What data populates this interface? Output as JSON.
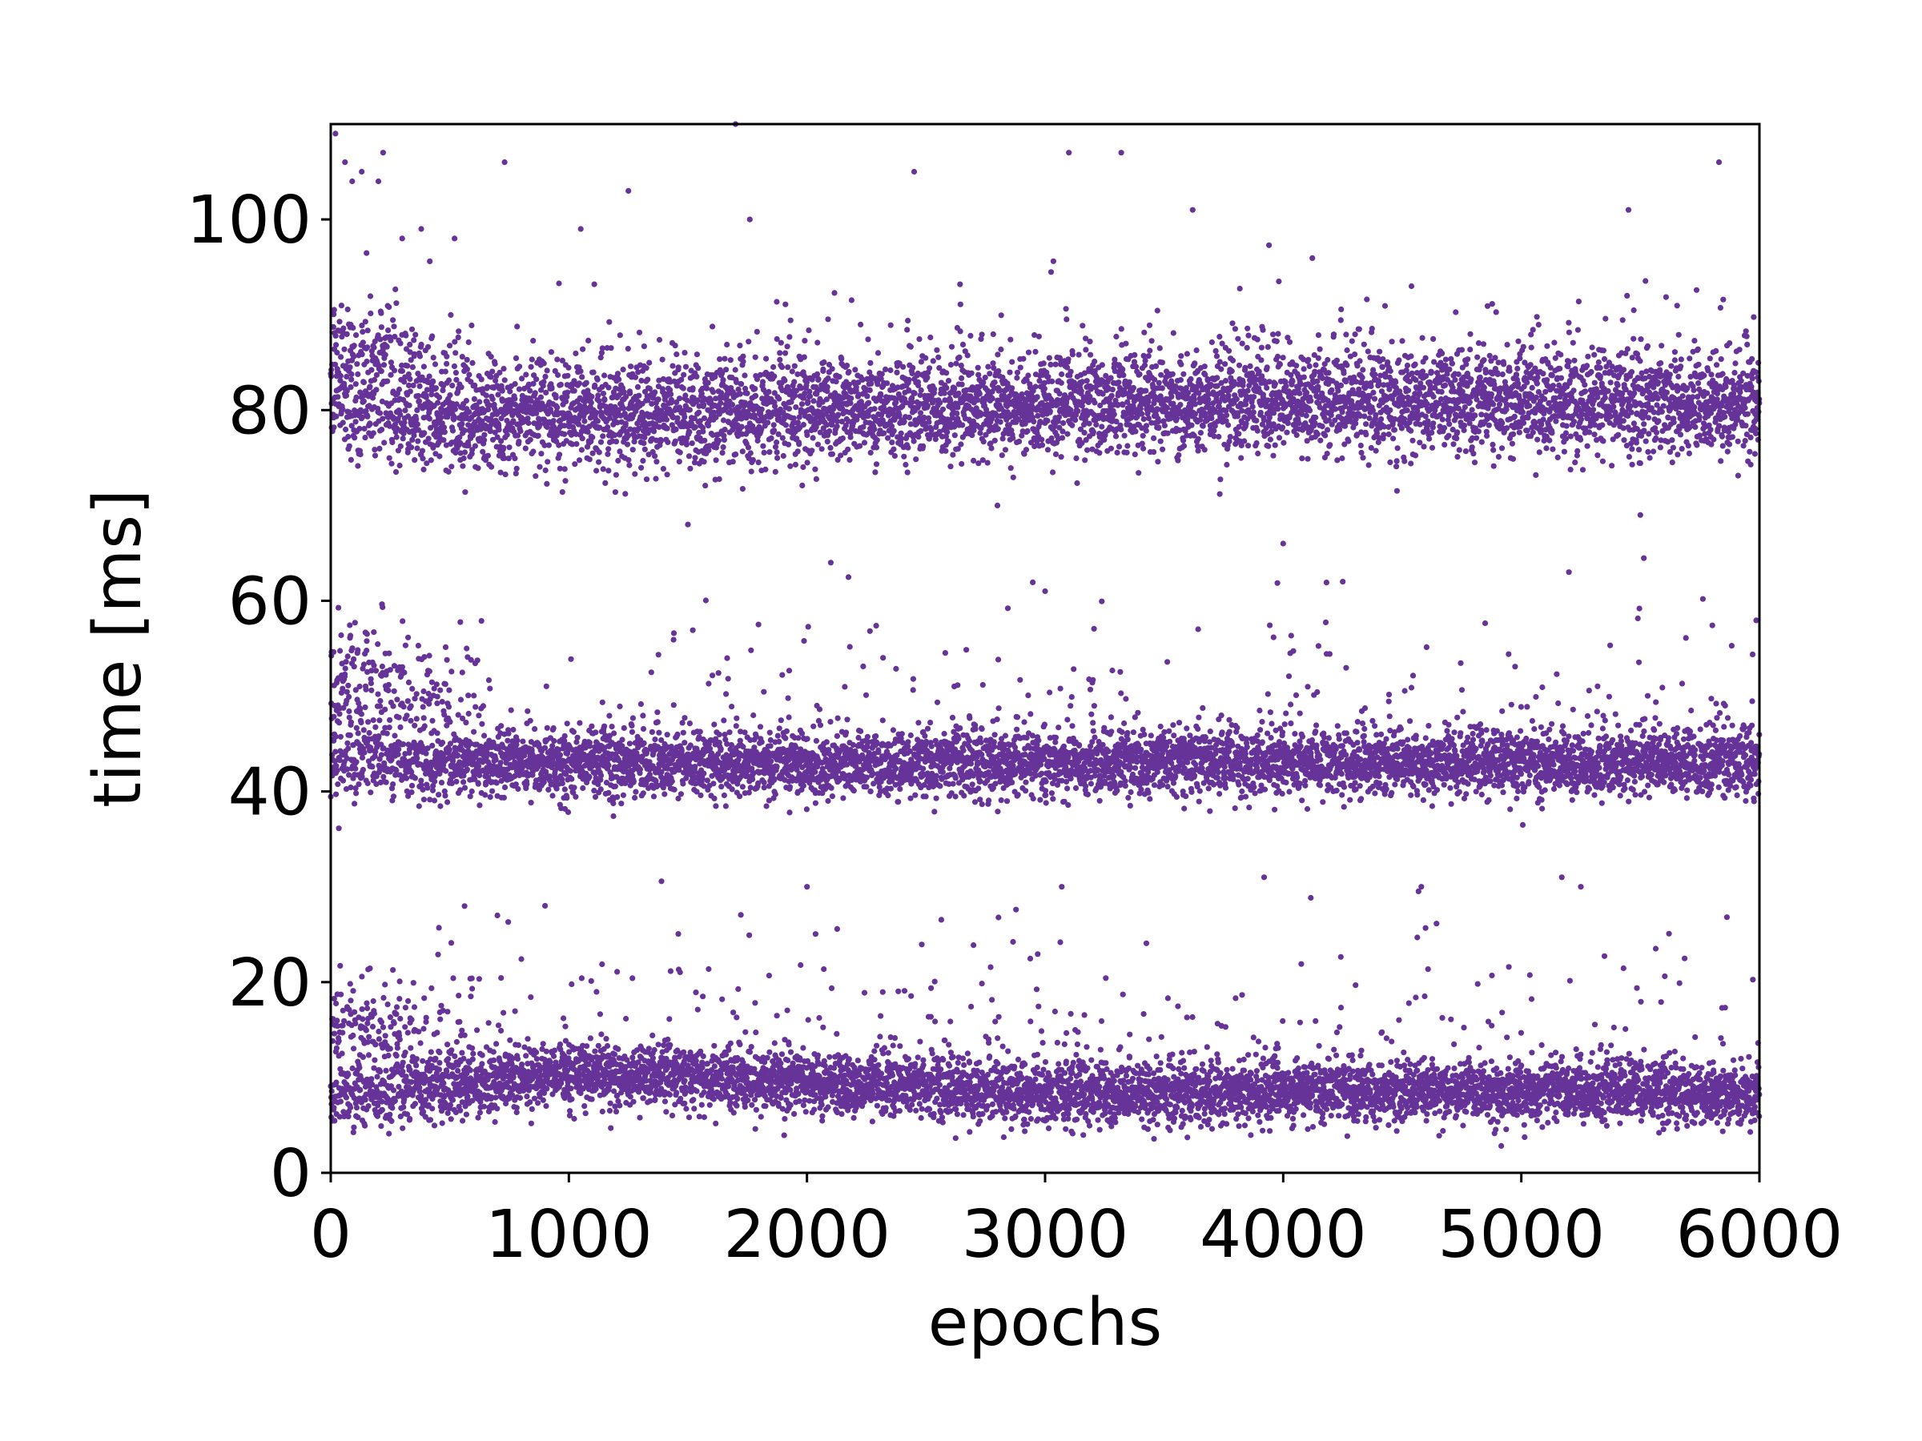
{
  "chart_data": {
    "type": "scatter",
    "title": "",
    "xlabel": "epochs",
    "ylabel": "time [ms]",
    "xlim": [
      0,
      6000
    ],
    "ylim": [
      0,
      110
    ],
    "xticks": [
      0,
      1000,
      2000,
      3000,
      4000,
      5000,
      6000
    ],
    "yticks": [
      0,
      20,
      40,
      60,
      80,
      100
    ],
    "xtick_labels": [
      "0",
      "1000",
      "2000",
      "3000",
      "4000",
      "5000",
      "6000"
    ],
    "ytick_labels": [
      "0",
      "20",
      "40",
      "60",
      "80",
      "100"
    ],
    "grid": false,
    "legend": "none",
    "marker_color": "#663399",
    "series": [
      {
        "name": "",
        "description": "three horizontal bands of per-epoch timings",
        "bands": [
          {
            "x_range": [
              0,
              6000
            ],
            "center_at_x": [
              [
                0,
                80
              ],
              [
                300,
                79
              ],
              [
                1000,
                79.5
              ],
              [
                2000,
                80
              ],
              [
                3000,
                80.5
              ],
              [
                4000,
                81
              ],
              [
                5000,
                81
              ],
              [
                6000,
                81
              ]
            ],
            "upper_cluster_early": {
              "x_range": [
                0,
                600
              ],
              "center": 86
            },
            "typical_spread": [
              75,
              88
            ]
          },
          {
            "x_range": [
              0,
              6000
            ],
            "center_at_x": [
              [
                0,
                43
              ],
              [
                1000,
                43
              ],
              [
                2000,
                43
              ],
              [
                3000,
                43
              ],
              [
                4000,
                43
              ],
              [
                5000,
                43
              ],
              [
                6000,
                43
              ]
            ],
            "upper_cluster_early": {
              "x_range": [
                0,
                700
              ],
              "center": 50
            },
            "typical_spread": [
              38,
              47
            ]
          },
          {
            "x_range": [
              0,
              6000
            ],
            "center_at_x": [
              [
                0,
                8
              ],
              [
                500,
                9
              ],
              [
                1000,
                10.5
              ],
              [
                2000,
                9.5
              ],
              [
                3000,
                8.5
              ],
              [
                4000,
                8.5
              ],
              [
                5000,
                8.5
              ],
              [
                6000,
                8.5
              ]
            ],
            "upper_cluster_early": {
              "x_range": [
                0,
                600
              ],
              "center": 15
            },
            "typical_spread": [
              5,
              13
            ]
          }
        ],
        "outliers": [
          {
            "x": 20,
            "y": 109
          },
          {
            "x": 60,
            "y": 106
          },
          {
            "x": 90,
            "y": 104
          },
          {
            "x": 130,
            "y": 105
          },
          {
            "x": 200,
            "y": 104
          },
          {
            "x": 220,
            "y": 107
          },
          {
            "x": 300,
            "y": 98
          },
          {
            "x": 380,
            "y": 99
          },
          {
            "x": 520,
            "y": 98
          },
          {
            "x": 730,
            "y": 106
          },
          {
            "x": 1050,
            "y": 99
          },
          {
            "x": 1250,
            "y": 103
          },
          {
            "x": 1700,
            "y": 110
          },
          {
            "x": 1760,
            "y": 100
          },
          {
            "x": 2450,
            "y": 105
          },
          {
            "x": 3100,
            "y": 107
          },
          {
            "x": 3320,
            "y": 107
          },
          {
            "x": 3620,
            "y": 101
          },
          {
            "x": 5450,
            "y": 101
          },
          {
            "x": 5830,
            "y": 106
          },
          {
            "x": 2000,
            "y": 30
          },
          {
            "x": 3070,
            "y": 30
          },
          {
            "x": 3920,
            "y": 31
          },
          {
            "x": 5170,
            "y": 31
          },
          {
            "x": 4580,
            "y": 30
          },
          {
            "x": 900,
            "y": 28
          },
          {
            "x": 5250,
            "y": 30
          },
          {
            "x": 700,
            "y": 27
          },
          {
            "x": 2100,
            "y": 64
          },
          {
            "x": 3000,
            "y": 61
          },
          {
            "x": 4000,
            "y": 66
          },
          {
            "x": 2800,
            "y": 70
          },
          {
            "x": 4250,
            "y": 62
          },
          {
            "x": 5200,
            "y": 63
          },
          {
            "x": 5500,
            "y": 69
          },
          {
            "x": 1500,
            "y": 68
          }
        ]
      }
    ]
  }
}
